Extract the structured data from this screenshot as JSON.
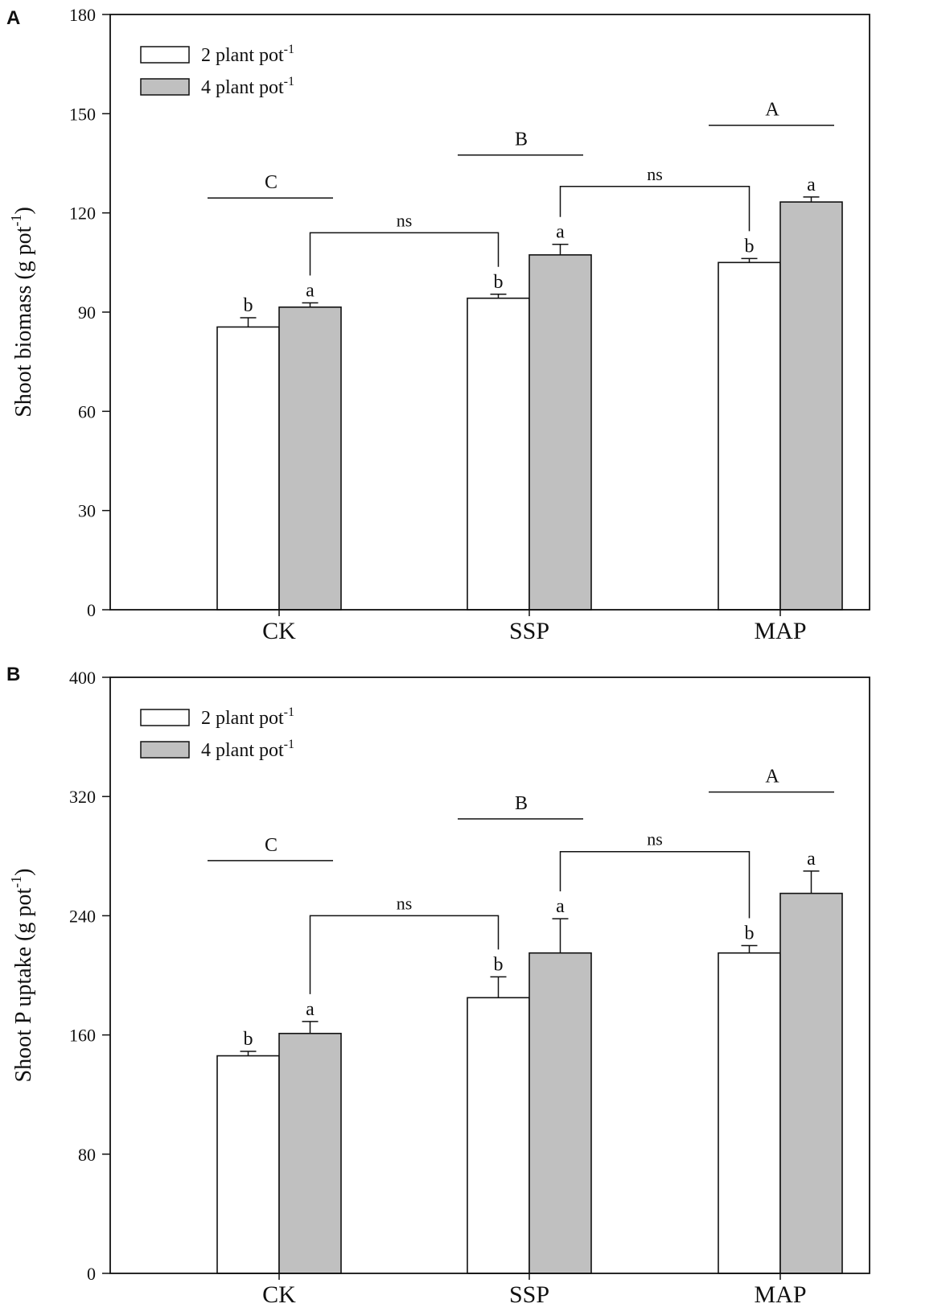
{
  "chart_data": [
    {
      "panel_label": "A",
      "type": "bar",
      "categories": [
        "CK",
        "SSP",
        "MAP"
      ],
      "series": [
        {
          "name": "2 plant pot",
          "superscript": "-1",
          "color": "#ffffff",
          "values": [
            85.5,
            94.2,
            105.0
          ],
          "errors": [
            2.8,
            1.2,
            1.2
          ],
          "letters": [
            "b",
            "b",
            "b"
          ]
        },
        {
          "name": "4 plant pot",
          "superscript": "-1",
          "color": "#c0c0c0",
          "values": [
            91.5,
            107.3,
            123.3
          ],
          "errors": [
            1.3,
            3.2,
            1.5
          ],
          "letters": [
            "a",
            "a",
            "a"
          ]
        }
      ],
      "ylabel": "Shoot biomass (g pot",
      "ylabel_superscript": "-1",
      "ylabel_suffix": ")",
      "xlabel": "",
      "ylim": [
        0,
        180
      ],
      "yticks": [
        0,
        30,
        60,
        90,
        120,
        150,
        180
      ],
      "legend_position": "top-left",
      "group_letters": [
        {
          "category": "CK",
          "label": "C",
          "value": 124.5
        },
        {
          "category": "SSP",
          "label": "B",
          "value": 137.5
        },
        {
          "category": "MAP",
          "label": "A",
          "value": 146.5
        }
      ],
      "comparisons": [
        {
          "from": "CK",
          "to": "SSP",
          "label": "ns",
          "value": 114.0
        },
        {
          "from": "SSP",
          "to": "MAP",
          "label": "ns",
          "value": 128.0
        }
      ]
    },
    {
      "panel_label": "B",
      "type": "bar",
      "categories": [
        "CK",
        "SSP",
        "MAP"
      ],
      "series": [
        {
          "name": "2 plant pot",
          "superscript": "-1",
          "color": "#ffffff",
          "values": [
            146,
            185,
            215
          ],
          "errors": [
            3,
            14,
            5
          ],
          "letters": [
            "b",
            "b",
            "b"
          ]
        },
        {
          "name": "4 plant pot",
          "superscript": "-1",
          "color": "#c0c0c0",
          "values": [
            161,
            215,
            255
          ],
          "errors": [
            8,
            23,
            15
          ],
          "letters": [
            "a",
            "a",
            "a"
          ]
        }
      ],
      "ylabel": "Shoot P uptake (g pot",
      "ylabel_superscript": "-1",
      "ylabel_suffix": ")",
      "xlabel": "",
      "ylim": [
        0,
        400
      ],
      "yticks": [
        0,
        80,
        160,
        240,
        320,
        400
      ],
      "legend_position": "top-left",
      "group_letters": [
        {
          "category": "CK",
          "label": "C",
          "value": 277
        },
        {
          "category": "SSP",
          "label": "B",
          "value": 305
        },
        {
          "category": "MAP",
          "label": "A",
          "value": 323
        }
      ],
      "comparisons": [
        {
          "from": "CK",
          "to": "SSP",
          "label": "ns",
          "value": 240
        },
        {
          "from": "SSP",
          "to": "MAP",
          "label": "ns",
          "value": 283
        }
      ]
    }
  ]
}
